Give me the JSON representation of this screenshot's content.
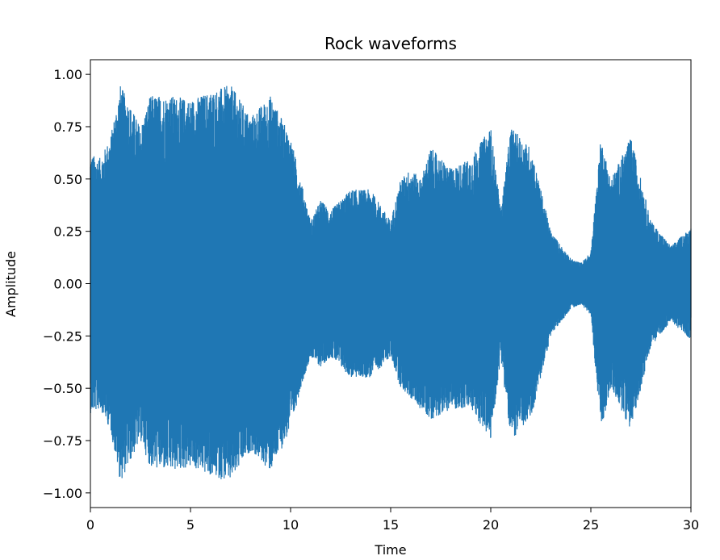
{
  "chart_data": {
    "type": "line",
    "title": "Rock waveforms",
    "xlabel": "Time",
    "ylabel": "Amplitude",
    "xlim": [
      0,
      30
    ],
    "ylim": [
      -1.07,
      1.07
    ],
    "x_ticks": [
      0,
      5,
      10,
      15,
      20,
      25,
      30
    ],
    "x_tick_labels": [
      "0",
      "5",
      "10",
      "15",
      "20",
      "25",
      "30"
    ],
    "y_ticks": [
      1.0,
      0.75,
      0.5,
      0.25,
      0.0,
      -0.25,
      -0.5,
      -0.75,
      -1.0
    ],
    "y_tick_labels": [
      "1.00",
      "0.75",
      "0.50",
      "0.25",
      "0.00",
      "−0.25",
      "−0.50",
      "−0.75",
      "−1.00"
    ],
    "grid": false,
    "color": "#1f77b4",
    "envelope": {
      "description_of_series": "waveform amplitude envelope over time",
      "time": [
        0,
        0.5,
        1,
        1.5,
        2,
        2.5,
        3,
        4,
        5,
        6,
        7,
        8,
        9,
        10,
        10.5,
        11,
        11.5,
        12,
        13,
        14,
        15,
        15.5,
        16,
        16.5,
        17,
        18,
        19,
        20,
        20.5,
        21,
        22,
        23,
        24,
        24.5,
        25,
        25.5,
        26,
        27,
        28,
        29,
        30
      ],
      "upper": [
        0.62,
        0.6,
        0.7,
        0.95,
        0.85,
        0.75,
        0.9,
        0.9,
        0.88,
        0.92,
        0.95,
        0.8,
        0.9,
        0.7,
        0.5,
        0.3,
        0.4,
        0.35,
        0.45,
        0.45,
        0.3,
        0.5,
        0.55,
        0.5,
        0.65,
        0.55,
        0.6,
        0.75,
        0.35,
        0.75,
        0.65,
        0.25,
        0.12,
        0.1,
        0.15,
        0.7,
        0.5,
        0.7,
        0.3,
        0.18,
        0.27
      ],
      "lower": [
        -0.62,
        -0.6,
        -0.7,
        -0.95,
        -0.85,
        -0.75,
        -0.88,
        -0.9,
        -0.88,
        -0.92,
        -0.95,
        -0.8,
        -0.9,
        -0.7,
        -0.5,
        -0.35,
        -0.4,
        -0.35,
        -0.45,
        -0.45,
        -0.35,
        -0.5,
        -0.55,
        -0.6,
        -0.65,
        -0.6,
        -0.6,
        -0.75,
        -0.35,
        -0.75,
        -0.65,
        -0.25,
        -0.12,
        -0.1,
        -0.15,
        -0.7,
        -0.5,
        -0.7,
        -0.3,
        -0.18,
        -0.27
      ]
    }
  }
}
